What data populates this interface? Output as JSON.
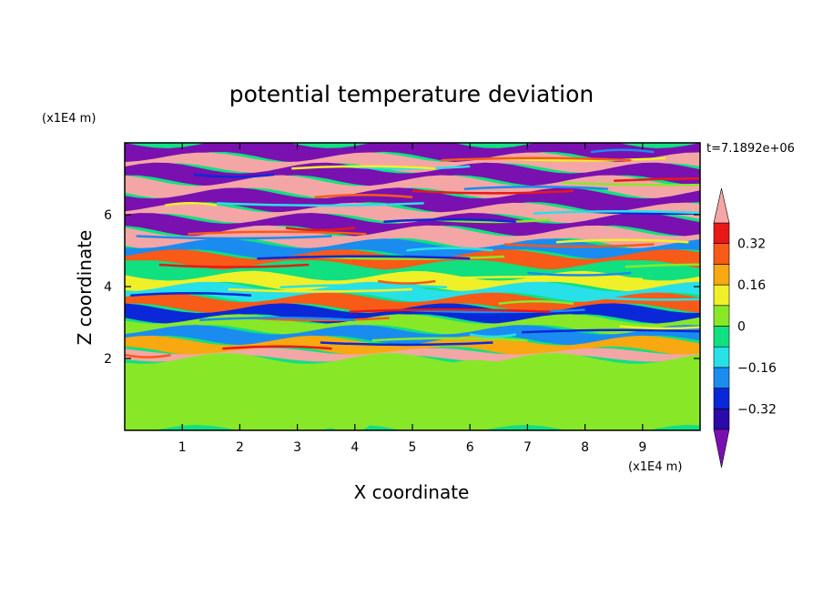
{
  "chart_data": {
    "type": "heatmap",
    "title": "potential temperature deviation",
    "xlabel": "X coordinate",
    "ylabel": "Z coordinate",
    "x_unit": "(x1E4 m)",
    "y_unit": "(x1E4 m)",
    "time_label": "t=7.1892e+06",
    "xlim": [
      0,
      10
    ],
    "ylim": [
      0,
      8
    ],
    "x_ticks": [
      "1",
      "2",
      "3",
      "4",
      "5",
      "6",
      "7",
      "8",
      "9"
    ],
    "y_ticks": [
      "2",
      "4",
      "6"
    ],
    "colorbar": {
      "levels": [
        -0.4,
        -0.32,
        -0.24,
        -0.16,
        -0.08,
        0,
        0.08,
        0.16,
        0.24,
        0.32,
        0.4
      ],
      "labels": [
        "0.32",
        "0.16",
        "0",
        "−0.16",
        "−0.32"
      ],
      "label_values": [
        0.32,
        0.16,
        0,
        -0.16,
        -0.32
      ],
      "over_color": "#f4a6a6",
      "under_color": "#7a10b0",
      "colors": [
        "#2a0aa8",
        "#0a28d8",
        "#1a8cf0",
        "#28e0e8",
        "#10e080",
        "#88e828",
        "#f0f028",
        "#f8a810",
        "#f85a18",
        "#e81818"
      ]
    },
    "field_description_rows": [
      {
        "z_range": [
          7.6,
          8.0
        ],
        "value": -0.45
      },
      {
        "z_range": [
          7.3,
          7.6
        ],
        "value": 0.45
      },
      {
        "z_range": [
          6.95,
          7.3
        ],
        "value": -0.45
      },
      {
        "z_range": [
          6.6,
          6.95
        ],
        "value": 0.45
      },
      {
        "z_range": [
          6.2,
          6.6
        ],
        "value": -0.45
      },
      {
        "z_range": [
          5.9,
          6.2
        ],
        "value": 0.45
      },
      {
        "z_range": [
          5.55,
          5.9
        ],
        "value": -0.45
      },
      {
        "z_range": [
          5.2,
          5.55
        ],
        "value": 0.45
      },
      {
        "z_range": [
          4.9,
          5.2
        ],
        "value": -0.2
      },
      {
        "z_range": [
          4.6,
          4.9
        ],
        "value": 0.3
      },
      {
        "z_range": [
          4.3,
          4.6
        ],
        "value": -0.05
      },
      {
        "z_range": [
          4.0,
          4.3
        ],
        "value": 0.1
      },
      {
        "z_range": [
          3.7,
          4.0
        ],
        "value": -0.12
      },
      {
        "z_range": [
          3.4,
          3.7
        ],
        "value": 0.25
      },
      {
        "z_range": [
          3.1,
          3.4
        ],
        "value": -0.3
      },
      {
        "z_range": [
          2.8,
          3.1
        ],
        "value": 0.05
      },
      {
        "z_range": [
          2.5,
          2.8
        ],
        "value": -0.2
      },
      {
        "z_range": [
          2.2,
          2.5
        ],
        "value": 0.2
      },
      {
        "z_range": [
          2.0,
          2.2
        ],
        "value": 0.45
      },
      {
        "z_range": [
          0.0,
          2.0
        ],
        "value": 0.02
      }
    ]
  }
}
